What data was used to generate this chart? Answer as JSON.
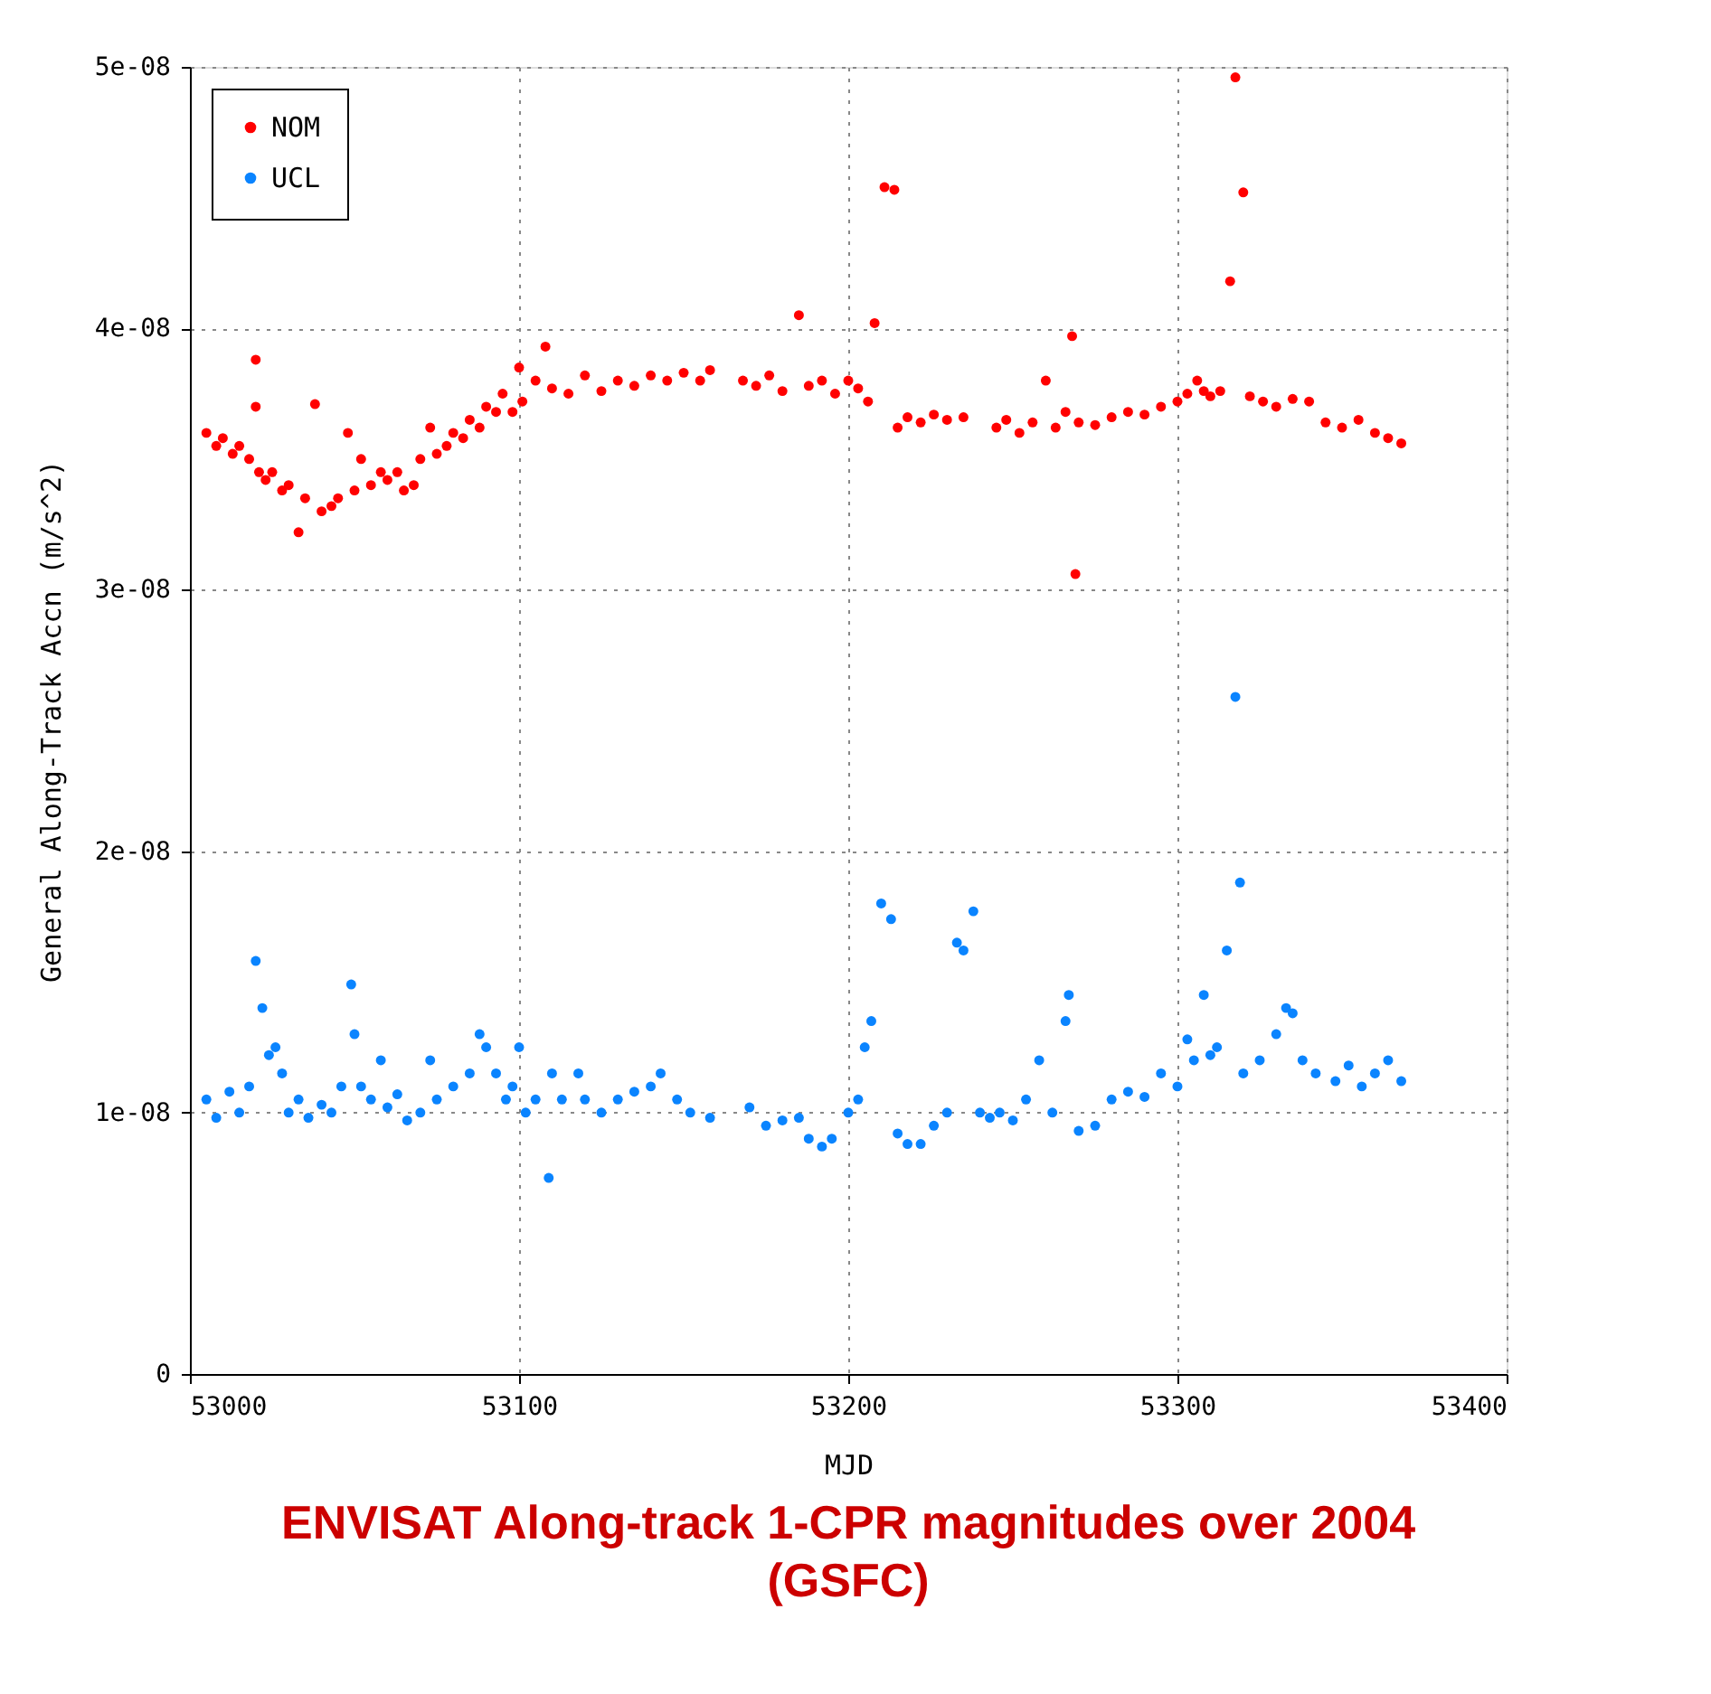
{
  "chart_data": {
    "type": "scatter",
    "title": "ENVISAT Along-track 1-CPR magnitudes over 2004\n(GSFC)",
    "xlabel": "MJD",
    "ylabel": "General Along-Track Accn (m/s^2)",
    "xlim": [
      53000,
      53400
    ],
    "xticks": [
      53000,
      53100,
      53200,
      53300,
      53400
    ],
    "ylim": [
      0,
      5e-08
    ],
    "yticks": [
      {
        "value": 0,
        "label": "0"
      },
      {
        "value": 1e-08,
        "label": "1e-08"
      },
      {
        "value": 2e-08,
        "label": "2e-08"
      },
      {
        "value": 3e-08,
        "label": "3e-08"
      },
      {
        "value": 4e-08,
        "label": "4e-08"
      },
      {
        "value": 5e-08,
        "label": "5e-08"
      }
    ],
    "grid": true,
    "legend": "top left",
    "marker": "circle",
    "series": [
      {
        "name": "NOM",
        "color": "#ff0000",
        "x": [
          53005,
          53008,
          53010,
          53013,
          53015,
          53018,
          53020,
          53020,
          53021,
          53023,
          53025,
          53028,
          53030,
          53033,
          53035,
          53038,
          53040,
          53043,
          53045,
          53048,
          53050,
          53052,
          53055,
          53058,
          53060,
          53063,
          53065,
          53068,
          53070,
          53073,
          53075,
          53078,
          53080,
          53083,
          53085,
          53088,
          53090,
          53093,
          53095,
          53098,
          53100,
          53101,
          53105,
          53108,
          53110,
          53115,
          53120,
          53125,
          53130,
          53135,
          53140,
          53145,
          53150,
          53155,
          53158,
          53168,
          53172,
          53176,
          53180,
          53185,
          53188,
          53192,
          53196,
          53200,
          53203,
          53206,
          53208,
          53211,
          53214,
          53215,
          53218,
          53222,
          53226,
          53230,
          53235,
          53245,
          53248,
          53252,
          53256,
          53260,
          53263,
          53266,
          53269,
          53268,
          53270,
          53275,
          53280,
          53285,
          53290,
          53295,
          53300,
          53303,
          53306,
          53308,
          53310,
          53313,
          53316,
          53317.6,
          53320,
          53322,
          53326,
          53330,
          53335,
          53340,
          53345,
          53350,
          53355,
          53360,
          53364,
          53368
        ],
        "values": [
          3.6e-08,
          3.55e-08,
          3.58e-08,
          3.52e-08,
          3.55e-08,
          3.5e-08,
          3.88e-08,
          3.7e-08,
          3.45e-08,
          3.42e-08,
          3.45e-08,
          3.38e-08,
          3.4e-08,
          3.22e-08,
          3.35e-08,
          3.71e-08,
          3.3e-08,
          3.32e-08,
          3.35e-08,
          3.6e-08,
          3.38e-08,
          3.5e-08,
          3.4e-08,
          3.45e-08,
          3.42e-08,
          3.45e-08,
          3.38e-08,
          3.4e-08,
          3.5e-08,
          3.62e-08,
          3.52e-08,
          3.55e-08,
          3.6e-08,
          3.58e-08,
          3.65e-08,
          3.62e-08,
          3.7e-08,
          3.68e-08,
          3.75e-08,
          3.68e-08,
          3.85e-08,
          3.72e-08,
          3.8e-08,
          3.93e-08,
          3.77e-08,
          3.75e-08,
          3.82e-08,
          3.76e-08,
          3.8e-08,
          3.78e-08,
          3.82e-08,
          3.8e-08,
          3.83e-08,
          3.8e-08,
          3.84e-08,
          3.8e-08,
          3.78e-08,
          3.82e-08,
          3.76e-08,
          4.05e-08,
          3.78e-08,
          3.8e-08,
          3.75e-08,
          3.8e-08,
          3.77e-08,
          3.72e-08,
          4.02e-08,
          4.54e-08,
          4.53e-08,
          3.62e-08,
          3.66e-08,
          3.64e-08,
          3.67e-08,
          3.65e-08,
          3.66e-08,
          3.62e-08,
          3.65e-08,
          3.6e-08,
          3.64e-08,
          3.8e-08,
          3.62e-08,
          3.68e-08,
          3.06e-08,
          3.97e-08,
          3.64e-08,
          3.63e-08,
          3.66e-08,
          3.68e-08,
          3.67e-08,
          3.7e-08,
          3.72e-08,
          3.75e-08,
          3.8e-08,
          3.76e-08,
          3.74e-08,
          3.76e-08,
          4.18e-08,
          4.96e-08,
          4.52e-08,
          3.74e-08,
          3.72e-08,
          3.7e-08,
          3.73e-08,
          3.72e-08,
          3.64e-08,
          3.62e-08,
          3.65e-08,
          3.6e-08,
          3.58e-08,
          3.56e-08
        ]
      },
      {
        "name": "UCL",
        "color": "#0a84ff",
        "x": [
          53005,
          53008,
          53012,
          53015,
          53018,
          53020,
          53022,
          53024,
          53026,
          53028,
          53030,
          53033,
          53036,
          53040,
          53043,
          53046,
          53049,
          53050,
          53052,
          53055,
          53058,
          53060,
          53063,
          53066,
          53070,
          53073,
          53075,
          53080,
          53085,
          53088,
          53090,
          53093,
          53096,
          53098,
          53100,
          53102,
          53105,
          53109,
          53110,
          53113,
          53118,
          53120,
          53125,
          53130,
          53135,
          53140,
          53143,
          53148,
          53152,
          53158,
          53170,
          53175,
          53180,
          53185,
          53188,
          53192,
          53195,
          53200,
          53203,
          53205,
          53207,
          53210,
          53213,
          53215,
          53218,
          53222,
          53226,
          53230,
          53233,
          53235,
          53238,
          53240,
          53243,
          53246,
          53250,
          53254,
          53258,
          53262,
          53266,
          53267,
          53270,
          53275,
          53280,
          53285,
          53290,
          53295,
          53300,
          53303,
          53305,
          53308,
          53310,
          53312,
          53315,
          53317.6,
          53319,
          53320,
          53325,
          53330,
          53333,
          53335,
          53338,
          53342,
          53348,
          53352,
          53356,
          53360,
          53364,
          53368
        ],
        "values": [
          1.05e-08,
          9.8e-09,
          1.08e-08,
          1e-08,
          1.1e-08,
          1.58e-08,
          1.4e-08,
          1.22e-08,
          1.25e-08,
          1.15e-08,
          1e-08,
          1.05e-08,
          9.8e-09,
          1.03e-08,
          1e-08,
          1.1e-08,
          1.49e-08,
          1.3e-08,
          1.1e-08,
          1.05e-08,
          1.2e-08,
          1.02e-08,
          1.07e-08,
          9.7e-09,
          1e-08,
          1.2e-08,
          1.05e-08,
          1.1e-08,
          1.15e-08,
          1.3e-08,
          1.25e-08,
          1.15e-08,
          1.05e-08,
          1.1e-08,
          1.25e-08,
          1e-08,
          1.05e-08,
          7.5e-09,
          1.15e-08,
          1.05e-08,
          1.15e-08,
          1.05e-08,
          1e-08,
          1.05e-08,
          1.08e-08,
          1.1e-08,
          1.15e-08,
          1.05e-08,
          1e-08,
          9.8e-09,
          1.02e-08,
          9.5e-09,
          9.7e-09,
          9.8e-09,
          9e-09,
          8.7e-09,
          9e-09,
          1e-08,
          1.05e-08,
          1.25e-08,
          1.35e-08,
          1.8e-08,
          1.74e-08,
          9.2e-09,
          8.8e-09,
          8.8e-09,
          9.5e-09,
          1e-08,
          1.65e-08,
          1.62e-08,
          1.77e-08,
          1e-08,
          9.8e-09,
          1e-08,
          9.7e-09,
          1.05e-08,
          1.2e-08,
          1e-08,
          1.35e-08,
          1.45e-08,
          9.3e-09,
          9.5e-09,
          1.05e-08,
          1.08e-08,
          1.06e-08,
          1.15e-08,
          1.1e-08,
          1.28e-08,
          1.2e-08,
          1.45e-08,
          1.22e-08,
          1.25e-08,
          1.62e-08,
          2.59e-08,
          1.88e-08,
          1.15e-08,
          1.2e-08,
          1.3e-08,
          1.4e-08,
          1.38e-08,
          1.2e-08,
          1.15e-08,
          1.12e-08,
          1.18e-08,
          1.1e-08,
          1.15e-08,
          1.2e-08,
          1.12e-08
        ]
      }
    ]
  }
}
